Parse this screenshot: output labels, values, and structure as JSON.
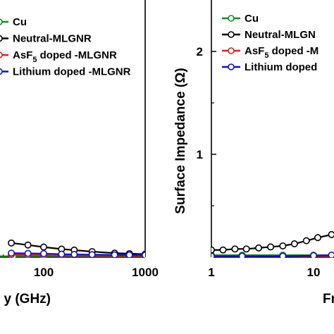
{
  "chart_data": [
    {
      "type": "line",
      "title": "",
      "xlabel": "y (GHz)",
      "ylabel": "",
      "xscale": "log",
      "x_ticks": [
        "100",
        "1000"
      ],
      "legend_placement": "top-left",
      "series": [
        {
          "name": "Cu",
          "color": "#1a8a1a",
          "marker": "open-circle",
          "x": [
            1,
            2,
            5,
            10,
            20,
            50,
            100,
            200,
            500,
            1000
          ],
          "y": [
            0.02,
            0.02,
            0.02,
            0.02,
            0.02,
            0.02,
            0.02,
            0.02,
            0.02,
            0.02
          ]
        },
        {
          "name": "Neutral-MLGNR",
          "color": "#000000",
          "marker": "open-circle",
          "x": [
            48,
            70,
            100,
            150,
            200,
            300,
            500,
            700,
            1000
          ],
          "y": [
            0.28,
            0.24,
            0.2,
            0.16,
            0.14,
            0.11,
            0.08,
            0.07,
            0.06
          ]
        },
        {
          "name": "AsF5 doped -MLGNR",
          "color": "#d62020",
          "marker": "open-circle",
          "x": [
            48,
            70,
            100,
            150,
            200,
            300,
            500,
            700,
            1000
          ],
          "y": [
            0.05,
            0.045,
            0.04,
            0.035,
            0.033,
            0.03,
            0.028,
            0.027,
            0.026
          ]
        },
        {
          "name": "Lithium doped -MLGNR",
          "color": "#1010cc",
          "marker": "open-circle",
          "x": [
            48,
            70,
            100,
            150,
            200,
            300,
            500,
            700,
            1000
          ],
          "y": [
            0.08,
            0.075,
            0.07,
            0.06,
            0.055,
            0.05,
            0.045,
            0.043,
            0.04
          ]
        }
      ]
    },
    {
      "type": "line",
      "title": "",
      "xlabel": "Fr",
      "ylabel": "Surface Impedance (Ω)",
      "xscale": "log",
      "x_ticks": [
        "1",
        "10"
      ],
      "y_ticks": [
        "1",
        "2"
      ],
      "legend_placement": "top-left",
      "series": [
        {
          "name": "Cu",
          "color": "#1a8a1a",
          "marker": "open-circle",
          "x": [
            1,
            2,
            5,
            10,
            15
          ],
          "y": [
            0.02,
            0.02,
            0.02,
            0.02,
            0.02
          ]
        },
        {
          "name": "Neutral-MLGN",
          "color": "#000000",
          "marker": "open-circle",
          "x": [
            1,
            1.3,
            1.7,
            2.2,
            2.9,
            3.8,
            5,
            6.5,
            8.5,
            11,
            15
          ],
          "y": [
            0.07,
            0.07,
            0.08,
            0.08,
            0.09,
            0.1,
            0.11,
            0.13,
            0.16,
            0.19,
            0.22
          ]
        },
        {
          "name": "AsF5 doped -M",
          "color": "#d62020",
          "marker": "open-circle",
          "x": [
            1,
            2,
            5,
            10,
            15
          ],
          "y": [
            0.01,
            0.01,
            0.01,
            0.01,
            0.01
          ]
        },
        {
          "name": "Lithium doped",
          "color": "#1010cc",
          "marker": "open-circle",
          "x": [
            1,
            2,
            5,
            10,
            15
          ],
          "y": [
            0.01,
            0.01,
            0.01,
            0.015,
            0.02
          ]
        }
      ]
    }
  ]
}
